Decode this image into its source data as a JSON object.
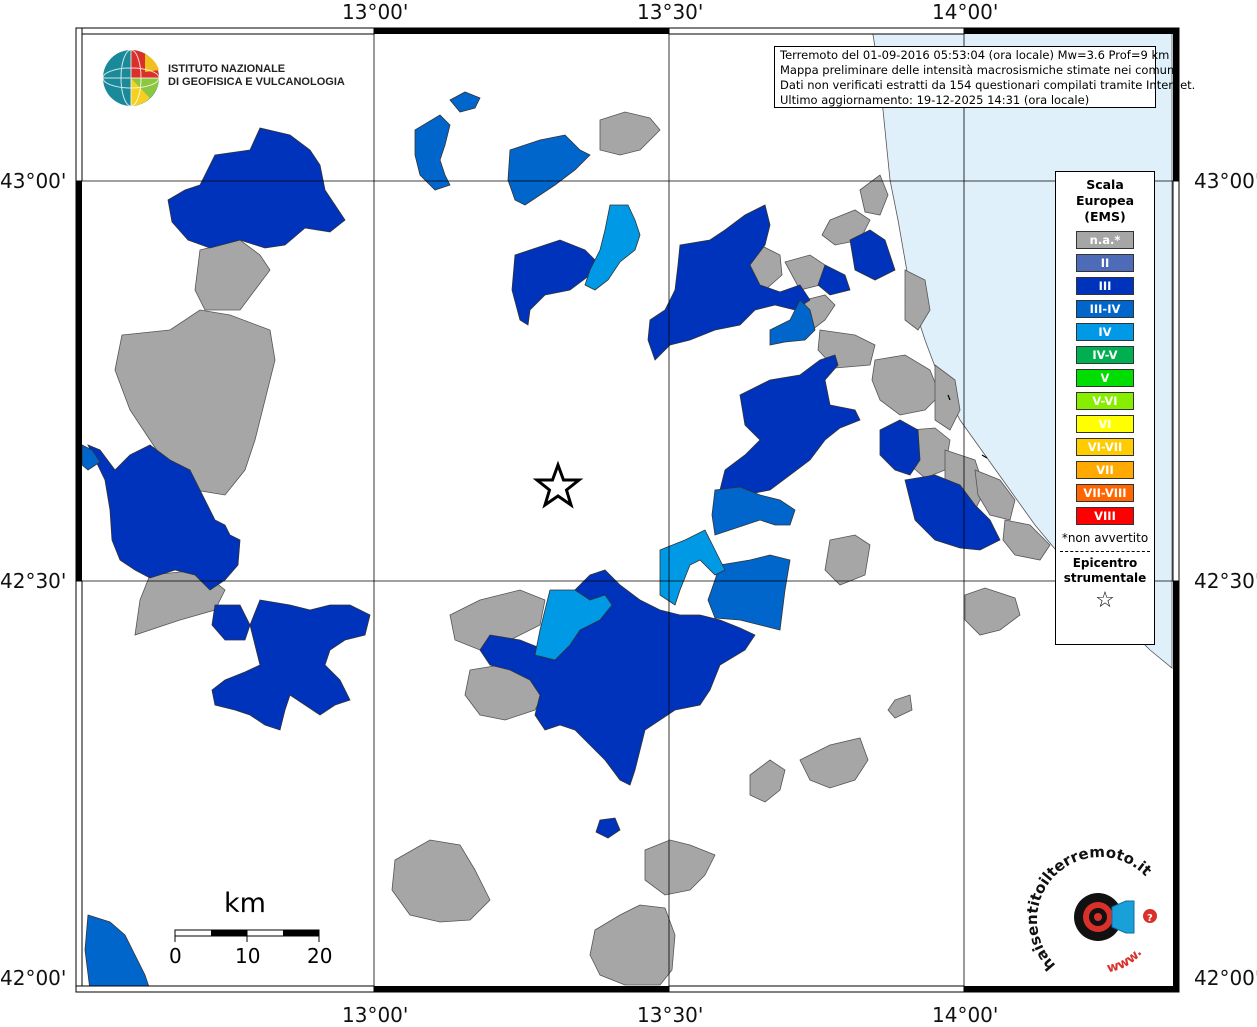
{
  "coords": {
    "top": [
      "13°00'",
      "13°30'",
      "14°00'"
    ],
    "bottom": [
      "13°00'",
      "13°30'",
      "14°00'"
    ],
    "left": [
      "43°00'",
      "42°30'",
      "42°00'"
    ],
    "right": [
      "43°00'",
      "42°30'",
      "42°00'"
    ]
  },
  "logo": {
    "line1": "ISTITUTO NAZIONALE",
    "line2": "DI GEOFISICA E VULCANOLOGIA"
  },
  "info": {
    "line1": "Terremoto del 01-09-2016 05:53:04 (ora locale) Mw=3.6 Prof=9 km",
    "line2": "Mappa preliminare delle intensità macrosismiche stimate nei comuni",
    "line3": "Dati non verificati estratti da 154 questionari compilati tramite Internet.",
    "line4": "Ultimo aggiornamento: 19-12-2025 14:31 (ora locale)"
  },
  "legend": {
    "title1": "Scala",
    "title2": "Europea",
    "title3": "(EMS)",
    "items": [
      {
        "label": "n.a.*",
        "color": "#a6a6a6"
      },
      {
        "label": "II",
        "color": "#4d6bb8"
      },
      {
        "label": "III",
        "color": "#0033bb"
      },
      {
        "label": "III-IV",
        "color": "#0066cc"
      },
      {
        "label": "IV",
        "color": "#0099e6"
      },
      {
        "label": "IV-V",
        "color": "#00b050"
      },
      {
        "label": "V",
        "color": "#00dd00"
      },
      {
        "label": "V-VI",
        "color": "#88ee00"
      },
      {
        "label": "VI",
        "color": "#ffff00"
      },
      {
        "label": "VI-VII",
        "color": "#ffcc00"
      },
      {
        "label": "VII",
        "color": "#ffaa00"
      },
      {
        "label": "VII-VIII",
        "color": "#ff6600"
      },
      {
        "label": "VIII",
        "color": "#ff0000"
      }
    ],
    "note": "*non avvertito",
    "epi1": "Epicentro",
    "epi2": "strumentale",
    "star": "☆"
  },
  "scale": {
    "unit": "km",
    "ticks": [
      "0",
      "10",
      "20"
    ]
  },
  "brand": {
    "text": "haisentitoilterremoto.it",
    "www": "www.",
    "q": "?"
  },
  "colors": {
    "sea": "#dff0fb",
    "gray": "#a6a6a6",
    "blue3": "#0033bb",
    "blue34": "#0066cc",
    "blue4": "#0099e6"
  }
}
